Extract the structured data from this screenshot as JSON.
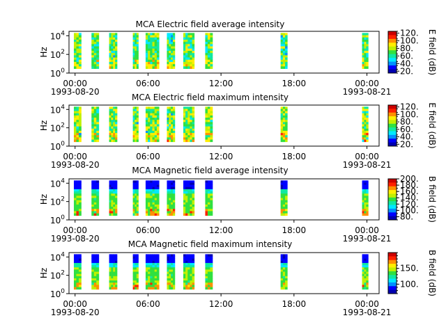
{
  "colors": {
    "colormap": [
      "#0000b0",
      "#0000ff",
      "#0090ff",
      "#00e8ff",
      "#10e8a0",
      "#30e040",
      "#c0f000",
      "#ffee00",
      "#ff9000",
      "#ff2000",
      "#cc0000"
    ],
    "no_data": "#ffffff"
  },
  "chart_data": [
    {
      "type": "heatmap",
      "title": "MCA  Electric field average intensity",
      "ylabel": "Hz",
      "yscale": "log",
      "ylim": [
        1,
        30000
      ],
      "ytick_labels": [
        "10^0",
        "10^2",
        "10^4"
      ],
      "xtick_labels": [
        "00:00\n1993-08-20",
        "06:00",
        "12:00",
        "18:00",
        "00:00\n1993-08-21"
      ],
      "xlim_hours": [
        -0.5,
        25
      ],
      "colorbar": {
        "label": "E field (dB)",
        "range": [
          15,
          125
        ],
        "ticks": [
          20,
          40,
          60,
          80,
          100,
          120
        ],
        "tick_labels": [
          "20.",
          "40.",
          "60.",
          "80.",
          "100.",
          "120."
        ]
      },
      "data_segments_hours": [
        [
          -0.1,
          0.5
        ],
        [
          1.35,
          1.95
        ],
        [
          2.8,
          3.45
        ],
        [
          4.75,
          5.2
        ],
        [
          5.8,
          6.9
        ],
        [
          7.55,
          8.2
        ],
        [
          8.9,
          9.8
        ],
        [
          10.7,
          11.3
        ],
        [
          16.9,
          17.45
        ],
        [
          23.6,
          24.1
        ]
      ],
      "freq_band_hz": [
        3,
        20000
      ]
    },
    {
      "type": "heatmap",
      "title": "MCA  Electric field maximum intensity",
      "ylabel": "Hz",
      "yscale": "log",
      "ylim": [
        1,
        30000
      ],
      "ytick_labels": [
        "10^0",
        "10^2",
        "10^4"
      ],
      "xtick_labels": [
        "00:00\n1993-08-20",
        "06:00",
        "12:00",
        "18:00",
        "00:00\n1993-08-21"
      ],
      "xlim_hours": [
        -0.5,
        25
      ],
      "colorbar": {
        "label": "E field (dB)",
        "range": [
          15,
          125
        ],
        "ticks": [
          20,
          40,
          60,
          80,
          100,
          120
        ],
        "tick_labels": [
          "20.",
          "40.",
          "60.",
          "80.",
          "100.",
          "120."
        ]
      },
      "data_segments_hours": [
        [
          -0.1,
          0.5
        ],
        [
          1.35,
          1.95
        ],
        [
          2.8,
          3.45
        ],
        [
          4.75,
          5.2
        ],
        [
          5.8,
          6.9
        ],
        [
          7.55,
          8.2
        ],
        [
          8.9,
          9.8
        ],
        [
          10.7,
          11.3
        ],
        [
          16.9,
          17.45
        ],
        [
          23.6,
          24.1
        ]
      ],
      "freq_band_hz": [
        3,
        20000
      ]
    },
    {
      "type": "heatmap",
      "title": "MCA  Magnetic field average intensity",
      "ylabel": "Hz",
      "yscale": "log",
      "ylim": [
        1,
        30000
      ],
      "ytick_labels": [
        "10^0",
        "10^2",
        "10^4"
      ],
      "xtick_labels": [
        "00:00\n1993-08-20",
        "06:00",
        "12:00",
        "18:00",
        "00:00\n1993-08-21"
      ],
      "xlim_hours": [
        -0.5,
        25
      ],
      "colorbar": {
        "label": "B field (dB)",
        "range": [
          70,
          200
        ],
        "ticks": [
          80,
          100,
          120,
          140,
          160,
          180,
          200
        ],
        "tick_labels": [
          "80.",
          "100.",
          "120.",
          "140.",
          "160.",
          "180.",
          "200."
        ]
      },
      "data_segments_hours": [
        [
          -0.1,
          0.5
        ],
        [
          1.35,
          1.95
        ],
        [
          2.8,
          3.45
        ],
        [
          4.75,
          5.2
        ],
        [
          5.8,
          6.9
        ],
        [
          7.55,
          8.2
        ],
        [
          8.9,
          9.8
        ],
        [
          10.7,
          11.3
        ],
        [
          16.9,
          17.45
        ],
        [
          23.6,
          24.1
        ]
      ],
      "freq_band_hz": [
        3,
        20000
      ]
    },
    {
      "type": "heatmap",
      "title": "MCA  Magnetic field maximum intensity",
      "ylabel": "Hz",
      "yscale": "log",
      "ylim": [
        1,
        30000
      ],
      "ytick_labels": [
        "10^0",
        "10^2",
        "10^4"
      ],
      "xtick_labels": [
        "00:00\n1993-08-20",
        "06:00",
        "12:00",
        "18:00",
        "00:00\n1993-08-21"
      ],
      "xlim_hours": [
        -0.5,
        25
      ],
      "colorbar": {
        "label": "B field (dB)",
        "range": [
          70,
          200
        ],
        "ticks": [
          100,
          150
        ],
        "tick_labels": [
          "100.",
          "150."
        ]
      },
      "data_segments_hours": [
        [
          -0.1,
          0.5
        ],
        [
          1.35,
          1.95
        ],
        [
          2.8,
          3.45
        ],
        [
          4.75,
          5.2
        ],
        [
          5.8,
          6.9
        ],
        [
          7.55,
          8.2
        ],
        [
          8.9,
          9.8
        ],
        [
          10.7,
          11.3
        ],
        [
          16.9,
          17.45
        ],
        [
          23.6,
          24.1
        ]
      ],
      "freq_band_hz": [
        3,
        20000
      ]
    }
  ]
}
